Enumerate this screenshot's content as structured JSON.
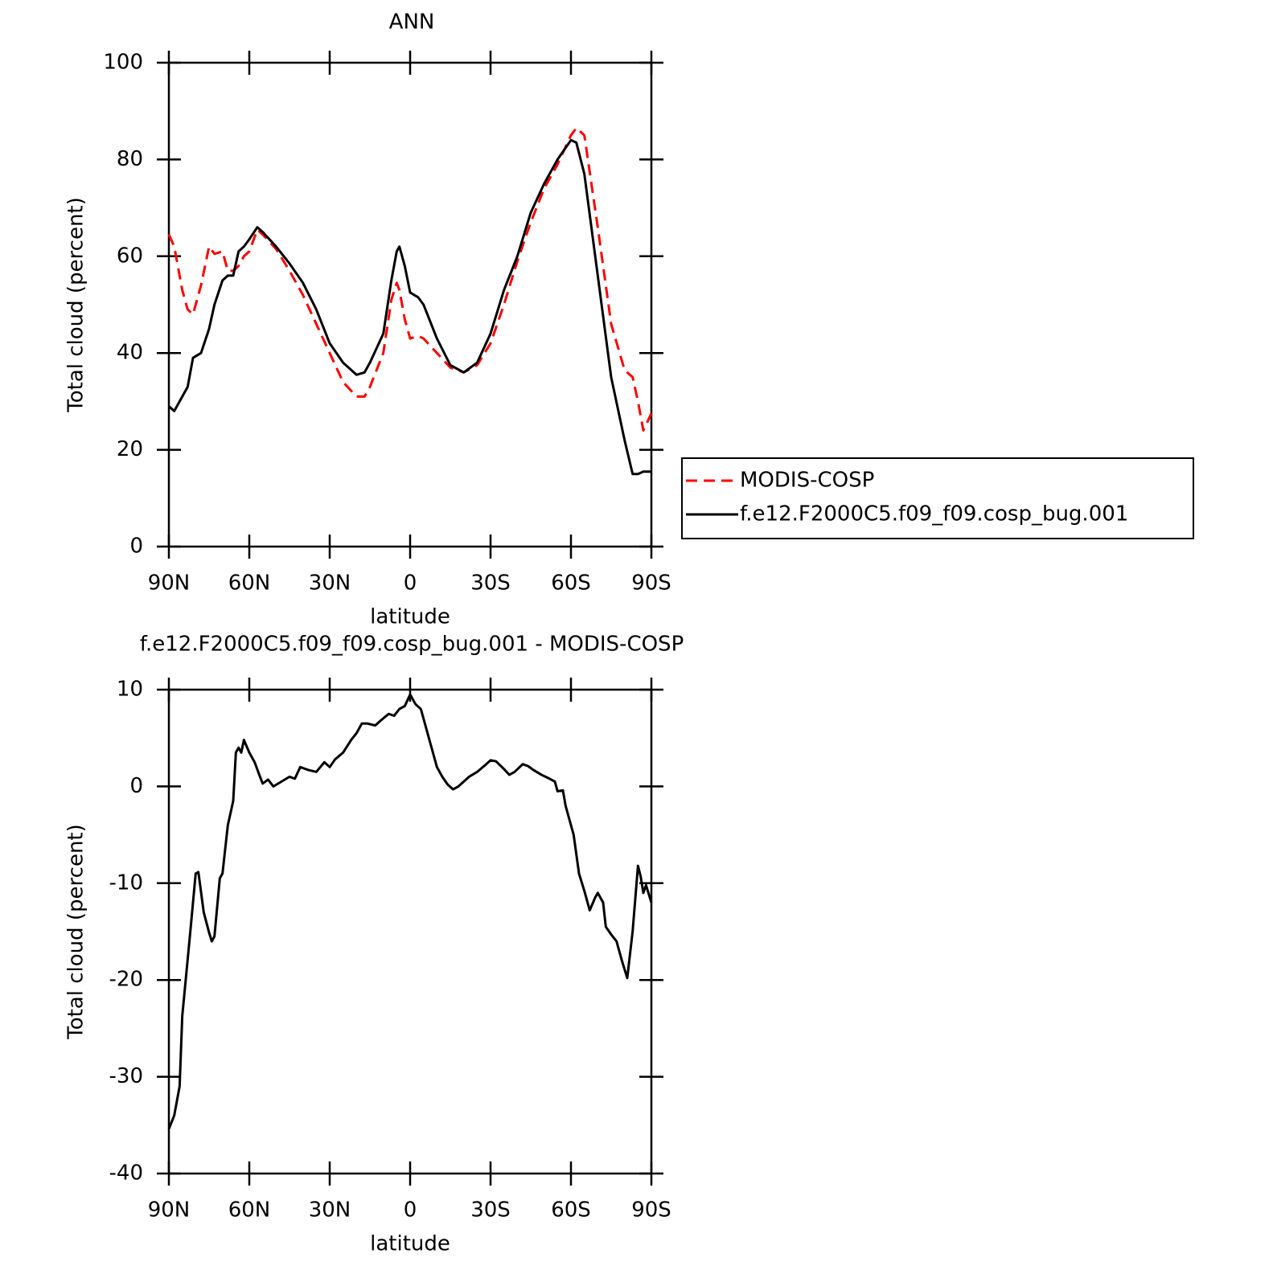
{
  "chart_data": [
    {
      "type": "line",
      "title": "ANN",
      "xlabel": "latitude",
      "ylabel": "Total cloud (percent)",
      "xlim": [
        90,
        -90
      ],
      "xticks": [
        {
          "value": 90,
          "label": "90N"
        },
        {
          "value": 60,
          "label": "60N"
        },
        {
          "value": 30,
          "label": "30N"
        },
        0,
        {
          "value": -30,
          "label": "30S"
        },
        {
          "value": -60,
          "label": "60S"
        },
        {
          "value": -90,
          "label": "90S"
        }
      ],
      "ylim": [
        0,
        100
      ],
      "yticks": [
        0,
        20,
        40,
        60,
        80,
        100
      ],
      "legend": "right",
      "x": [
        90,
        88,
        85,
        83,
        81,
        78,
        75,
        73,
        70,
        68,
        66,
        64,
        62,
        60,
        57,
        55,
        50,
        45,
        40,
        35,
        30,
        25,
        20,
        17,
        15,
        10,
        7,
        5,
        4,
        2,
        0,
        -3,
        -5,
        -10,
        -15,
        -20,
        -25,
        -30,
        -35,
        -40,
        -45,
        -50,
        -55,
        -60,
        -62,
        -65,
        -70,
        -75,
        -80,
        -83,
        -85,
        -87,
        -90
      ],
      "series": [
        {
          "name": "MODIS-COSP",
          "color": "#ff0000",
          "style": "dashed",
          "values": [
            64.5,
            62,
            53,
            49,
            48,
            54,
            62,
            60.5,
            61,
            57,
            57,
            58,
            60,
            61,
            65.5,
            64.5,
            61.5,
            57,
            52,
            46,
            40,
            34,
            31,
            31,
            33,
            40,
            51,
            54.5,
            53,
            47,
            43,
            43.5,
            43,
            40,
            37,
            36,
            37.5,
            42,
            50,
            59,
            67,
            74,
            79,
            85,
            86.5,
            85,
            66,
            46,
            36.5,
            35,
            30,
            24,
            27.5
          ]
        },
        {
          "name": "f.e12.F2000C5.f09_f09.cosp_bug.001",
          "color": "#000000",
          "style": "solid",
          "values": [
            29,
            28,
            31,
            33,
            39,
            40,
            45,
            50,
            55,
            56,
            56,
            61,
            62,
            63.5,
            66,
            65,
            62,
            58.5,
            54.5,
            49,
            42,
            38,
            35.5,
            36,
            38,
            44,
            55,
            61,
            62,
            58,
            52.5,
            51.5,
            50,
            43,
            37.5,
            36,
            38,
            44,
            53,
            60,
            69,
            75,
            80,
            84,
            83.5,
            77,
            56,
            35,
            22,
            15,
            15,
            15.5,
            15.5
          ]
        }
      ]
    },
    {
      "type": "line",
      "title": "f.e12.F2000C5.f09_f09.cosp_bug.001 - MODIS-COSP",
      "xlabel": "latitude",
      "ylabel": "Total cloud (percent)",
      "xlim": [
        90,
        -90
      ],
      "xticks": [
        {
          "value": 90,
          "label": "90N"
        },
        {
          "value": 60,
          "label": "60N"
        },
        {
          "value": 30,
          "label": "30N"
        },
        0,
        {
          "value": -30,
          "label": "30S"
        },
        {
          "value": -60,
          "label": "60S"
        },
        {
          "value": -90,
          "label": "90S"
        }
      ],
      "ylim": [
        -40,
        10
      ],
      "yticks": [
        -40,
        -30,
        -20,
        -10,
        0,
        10
      ],
      "color": "#000000",
      "x": [
        90,
        88,
        86,
        85,
        82,
        80,
        79,
        77,
        75,
        74,
        73,
        71,
        70,
        68,
        66,
        65,
        64,
        63,
        62,
        60,
        58,
        56,
        55,
        53,
        51,
        48,
        45,
        43,
        41,
        38,
        35,
        32,
        30,
        28,
        25,
        22,
        20,
        18,
        16,
        13,
        11,
        8,
        6,
        4,
        2,
        0,
        -2,
        -4,
        -6,
        -8,
        -10,
        -12,
        -14,
        -16,
        -18,
        -20,
        -22,
        -25,
        -28,
        -30,
        -32,
        -35,
        -37,
        -39,
        -42,
        -44,
        -46,
        -49,
        -52,
        -54,
        -55,
        -57,
        -58,
        -61,
        -63,
        -65,
        -67,
        -69,
        -70,
        -72,
        -73,
        -75,
        -77,
        -79,
        -81,
        -83,
        -85,
        -86,
        -87,
        -88,
        -90
      ],
      "values": [
        -35.4,
        -34,
        -31,
        -23.7,
        -15,
        -9,
        -8.85,
        -13,
        -15.1,
        -16,
        -15.5,
        -9.5,
        -9,
        -4,
        -1.5,
        3.5,
        4,
        3.5,
        4.8,
        3.5,
        2.5,
        1,
        0.3,
        0.7,
        0,
        0.5,
        1,
        0.8,
        2,
        1.7,
        1.5,
        2.5,
        2,
        2.8,
        3.5,
        4.8,
        5.5,
        6.5,
        6.5,
        6.3,
        6.8,
        7.5,
        7.3,
        8,
        8.3,
        9.5,
        8.5,
        8,
        6,
        4,
        2,
        1,
        0.2,
        -0.3,
        0,
        0.5,
        1,
        1.5,
        2.2,
        2.7,
        2.6,
        1.8,
        1.2,
        1.5,
        2.3,
        2.1,
        1.7,
        1.2,
        0.8,
        0.5,
        -0.5,
        -0.4,
        -2,
        -5,
        -9,
        -10.8,
        -12.8,
        -11.5,
        -11,
        -12,
        -14.5,
        -15.3,
        -16,
        -18,
        -19.8,
        -15,
        -8.2,
        -9.3,
        -11,
        -10.2,
        -12
      ]
    }
  ]
}
